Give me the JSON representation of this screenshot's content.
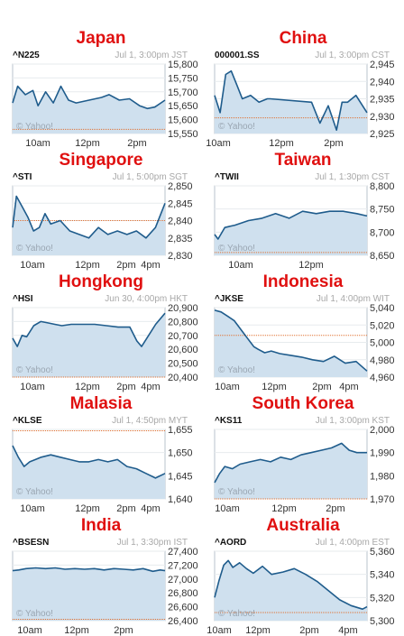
{
  "charts": [
    {
      "country": "Japan",
      "ticker": "^N225",
      "stamp": "Jul 1, 3:00pm JST",
      "watermark": "© Yahoo!",
      "ylabels": [
        "15,800",
        "15,750",
        "15,700",
        "15,650",
        "15,600",
        "15,550"
      ],
      "xlabels": [
        "10am",
        "12pm",
        "2pm"
      ]
    },
    {
      "country": "China",
      "ticker": "000001.SS",
      "stamp": "Jul 1, 3:00pm CST",
      "watermark": "© Yahoo!",
      "ylabels": [
        "2,945",
        "2,940",
        "2,935",
        "2,930",
        "2,925"
      ],
      "xlabels": [
        "10am",
        "12pm",
        "2pm"
      ]
    },
    {
      "country": "Singapore",
      "ticker": "^STI",
      "stamp": "Jul 1, 5:00pm SGT",
      "watermark": "© Yahoo!",
      "ylabels": [
        "2,850",
        "2,845",
        "2,840",
        "2,835",
        "2,830"
      ],
      "xlabels": [
        "10am",
        "12pm",
        "2pm",
        "4pm"
      ]
    },
    {
      "country": "Taiwan",
      "ticker": "^TWII",
      "stamp": "Jul 1, 1:30pm CST",
      "watermark": "© Yahoo!",
      "ylabels": [
        "8,800",
        "8,750",
        "8,700",
        "8,650"
      ],
      "xlabels": [
        "10am",
        "12pm"
      ]
    },
    {
      "country": "Hongkong",
      "ticker": "^HSI",
      "stamp": "Jun 30, 4:00pm HKT",
      "watermark": "© Yahoo!",
      "ylabels": [
        "20,900",
        "20,800",
        "20,700",
        "20,600",
        "20,500",
        "20,400"
      ],
      "xlabels": [
        "10am",
        "12pm",
        "2pm",
        "4pm"
      ]
    },
    {
      "country": "Indonesia",
      "ticker": "^JKSE",
      "stamp": "Jul 1, 4:00pm WIT",
      "watermark": "© Yahoo!",
      "ylabels": [
        "5,040",
        "5,020",
        "5,000",
        "4,980",
        "4,960"
      ],
      "xlabels": [
        "10am",
        "12pm",
        "2pm",
        "4pm"
      ]
    },
    {
      "country": "Malasia",
      "ticker": "^KLSE",
      "stamp": "Jul 1, 4:50pm MYT",
      "watermark": "© Yahoo!",
      "ylabels": [
        "1,655",
        "1,650",
        "1,645",
        "1,640"
      ],
      "xlabels": [
        "10am",
        "12pm",
        "2pm",
        "4pm"
      ]
    },
    {
      "country": "South Korea",
      "ticker": "^KS11",
      "stamp": "Jul 1, 3:00pm KST",
      "watermark": "© Yahoo!",
      "ylabels": [
        "2,000",
        "1,990",
        "1,980",
        "1,970"
      ],
      "xlabels": [
        "10am",
        "12pm",
        "2pm"
      ]
    },
    {
      "country": "India",
      "ticker": "^BSESN",
      "stamp": "Jul 1, 3:30pm IST",
      "watermark": "© Yahoo!",
      "ylabels": [
        "27,400",
        "27,200",
        "27,000",
        "26,800",
        "26,600",
        "26,400"
      ],
      "xlabels": [
        "10am",
        "12pm",
        "2pm"
      ]
    },
    {
      "country": "Australia",
      "ticker": "^AORD",
      "stamp": "Jul 1, 4:00pm EST",
      "watermark": "© Yahoo!",
      "ylabels": [
        "5,360",
        "5,340",
        "5,320",
        "5,300"
      ],
      "xlabels": [
        "10am",
        "12pm",
        "2pm",
        "4pm"
      ]
    }
  ],
  "chart_data": [
    {
      "type": "area",
      "title": "Japan",
      "ticker": "^N225",
      "prev_close": 15565,
      "ylim": [
        15550,
        15800
      ],
      "xlim": [
        9,
        15
      ],
      "x": [
        9,
        9.2,
        9.5,
        9.8,
        10,
        10.3,
        10.6,
        10.9,
        11.2,
        11.5,
        12.5,
        12.8,
        13.2,
        13.6,
        14,
        14.3,
        14.6,
        15
      ],
      "y": [
        15660,
        15720,
        15690,
        15705,
        15650,
        15700,
        15660,
        15720,
        15670,
        15660,
        15680,
        15690,
        15670,
        15675,
        15650,
        15640,
        15645,
        15670
      ]
    },
    {
      "type": "area",
      "title": "China",
      "ticker": "000001.SS",
      "prev_close": 2929.5,
      "ylim": [
        2925,
        2945
      ],
      "xlim": [
        9.5,
        15
      ],
      "x": [
        9.5,
        9.7,
        9.9,
        10.1,
        10.3,
        10.5,
        10.8,
        11.1,
        11.4,
        11.5,
        13,
        13.3,
        13.6,
        13.9,
        14.1,
        14.3,
        14.6,
        15
      ],
      "y": [
        2936,
        2931,
        2942,
        2943,
        2939,
        2935,
        2936,
        2934,
        2935,
        2935,
        2934,
        2928,
        2933,
        2926,
        2934,
        2934,
        2936,
        2931
      ]
    },
    {
      "type": "area",
      "title": "Singapore",
      "ticker": "^STI",
      "prev_close": 2840,
      "ylim": [
        2830,
        2850
      ],
      "xlim": [
        9,
        17
      ],
      "x": [
        9,
        9.2,
        9.5,
        9.8,
        10.1,
        10.4,
        10.7,
        11,
        11.5,
        12,
        12.5,
        13,
        13.5,
        14,
        14.5,
        15,
        15.5,
        16,
        16.5,
        17
      ],
      "y": [
        2838,
        2847,
        2844,
        2841,
        2837,
        2838,
        2842,
        2839,
        2840,
        2837,
        2836,
        2835,
        2838,
        2836,
        2837,
        2836,
        2837,
        2835,
        2838,
        2845
      ]
    },
    {
      "type": "area",
      "title": "Taiwan",
      "ticker": "^TWII",
      "prev_close": 8656,
      "ylim": [
        8650,
        8800
      ],
      "xlim": [
        9,
        13.5
      ],
      "x": [
        9,
        9.1,
        9.3,
        9.6,
        10,
        10.4,
        10.8,
        11.2,
        11.6,
        12,
        12.4,
        12.8,
        13.2,
        13.5
      ],
      "y": [
        8695,
        8685,
        8710,
        8715,
        8725,
        8730,
        8740,
        8730,
        8745,
        8740,
        8745,
        8745,
        8740,
        8735
      ]
    },
    {
      "type": "area",
      "title": "Hongkong",
      "ticker": "^HSI",
      "prev_close": 20400,
      "ylim": [
        20400,
        20900
      ],
      "xlim": [
        9.5,
        16
      ],
      "x": [
        9.5,
        9.7,
        9.9,
        10.1,
        10.4,
        10.7,
        11,
        11.3,
        11.6,
        12,
        13,
        13.5,
        14,
        14.5,
        14.8,
        15,
        15.3,
        15.6,
        16
      ],
      "y": [
        20680,
        20620,
        20700,
        20690,
        20770,
        20800,
        20790,
        20780,
        20770,
        20780,
        20780,
        20770,
        20760,
        20760,
        20660,
        20620,
        20700,
        20780,
        20860
      ]
    },
    {
      "type": "area",
      "title": "Indonesia",
      "ticker": "^JKSE",
      "prev_close": 5008,
      "ylim": [
        4960,
        5040
      ],
      "xlim": [
        9,
        16
      ],
      "x": [
        9,
        9.3,
        9.6,
        9.9,
        10.2,
        10.5,
        10.8,
        11,
        11.3,
        11.6,
        12,
        12.5,
        13,
        13.5,
        14,
        14.5,
        15,
        15.5,
        16
      ],
      "y": [
        5037,
        5035,
        5030,
        5025,
        5015,
        5005,
        4995,
        4992,
        4988,
        4990,
        4987,
        4985,
        4983,
        4980,
        4978,
        4984,
        4976,
        4978,
        4967
      ]
    },
    {
      "type": "area",
      "title": "Malasia",
      "ticker": "^KLSE",
      "prev_close": 1654.7,
      "ylim": [
        1640,
        1655
      ],
      "xlim": [
        9,
        17
      ],
      "x": [
        9,
        9.3,
        9.6,
        9.9,
        10.2,
        10.5,
        11,
        11.5,
        12,
        12.5,
        13,
        13.5,
        14,
        14.5,
        15,
        15.5,
        16,
        16.5,
        17
      ],
      "y": [
        1651.5,
        1649,
        1647,
        1648,
        1648.5,
        1649,
        1649.5,
        1649,
        1648.5,
        1648,
        1648,
        1648.5,
        1648,
        1648.5,
        1647,
        1646.5,
        1645.5,
        1644.5,
        1645.5
      ]
    },
    {
      "type": "area",
      "title": "South Korea",
      "ticker": "^KS11",
      "prev_close": 1970,
      "ylim": [
        1970,
        2000
      ],
      "xlim": [
        9,
        15
      ],
      "x": [
        9,
        9.2,
        9.4,
        9.7,
        10,
        10.4,
        10.8,
        11.2,
        11.6,
        12,
        12.4,
        12.8,
        13.2,
        13.6,
        14,
        14.3,
        14.6,
        15
      ],
      "y": [
        1977,
        1981,
        1984,
        1983,
        1985,
        1986,
        1987,
        1986,
        1988,
        1987,
        1989,
        1990,
        1991,
        1992,
        1994,
        1991,
        1990,
        1990
      ]
    },
    {
      "type": "area",
      "title": "India",
      "ticker": "^BSESN",
      "prev_close": 26420,
      "ylim": [
        26400,
        27400
      ],
      "xlim": [
        9.25,
        15.5
      ],
      "x": [
        9.25,
        9.5,
        9.8,
        10.2,
        10.6,
        11,
        11.4,
        11.8,
        12.2,
        12.6,
        13,
        13.4,
        13.8,
        14.2,
        14.6,
        15,
        15.3,
        15.5
      ],
      "y": [
        27120,
        27130,
        27150,
        27160,
        27150,
        27160,
        27140,
        27150,
        27140,
        27150,
        27130,
        27150,
        27140,
        27130,
        27150,
        27110,
        27130,
        27120
      ]
    },
    {
      "type": "area",
      "title": "Australia",
      "ticker": "^AORD",
      "prev_close": 5307,
      "ylim": [
        5300,
        5360
      ],
      "xlim": [
        9.5,
        16.2
      ],
      "x": [
        9.5,
        9.7,
        9.9,
        10.1,
        10.3,
        10.6,
        10.9,
        11.2,
        11.6,
        12,
        12.5,
        13,
        13.5,
        14,
        14.5,
        15,
        15.5,
        16,
        16.2
      ],
      "y": [
        5320,
        5335,
        5348,
        5352,
        5346,
        5350,
        5345,
        5341,
        5347,
        5340,
        5342,
        5345,
        5340,
        5334,
        5326,
        5318,
        5313,
        5310,
        5312
      ]
    }
  ]
}
